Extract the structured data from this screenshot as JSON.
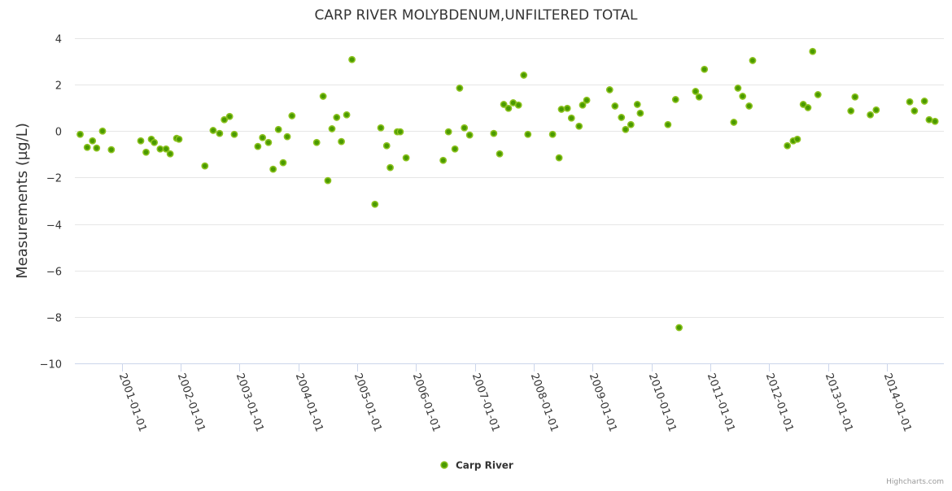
{
  "chart_data": {
    "type": "scatter",
    "title": "CARP RIVER MOLYBDENUM,UNFILTERED TOTAL",
    "xlabel": "",
    "ylabel": "Measurements (µg/L)",
    "x_units": "decimal year",
    "xlim": [
      2000.2,
      2014.97
    ],
    "ylim": [
      -10,
      4
    ],
    "yticks": [
      4,
      2,
      0,
      -2,
      -4,
      -6,
      -8,
      -10
    ],
    "ytick_labels": [
      "4",
      "2",
      "0",
      "−2",
      "−4",
      "−6",
      "−8",
      "−10"
    ],
    "xticks": [
      2001,
      2002,
      2003,
      2004,
      2005,
      2006,
      2007,
      2008,
      2009,
      2010,
      2011,
      2012,
      2013,
      2014
    ],
    "xtick_labels": [
      "2001-01-01",
      "2002-01-01",
      "2003-01-01",
      "2004-01-01",
      "2005-01-01",
      "2006-01-01",
      "2007-01-01",
      "2008-01-01",
      "2009-01-01",
      "2010-01-01",
      "2011-01-01",
      "2012-01-01",
      "2013-01-01",
      "2014-01-01"
    ],
    "grid": true,
    "legend_position": "bottom-center",
    "series": [
      {
        "name": "Carp River",
        "color": "#4a9a00",
        "edge_color": "#8cc21f",
        "points": [
          [
            2000.29,
            -0.14
          ],
          [
            2000.41,
            -0.7
          ],
          [
            2000.5,
            -0.42
          ],
          [
            2000.57,
            -0.73
          ],
          [
            2000.67,
            0.0
          ],
          [
            2000.82,
            -0.8
          ],
          [
            2001.32,
            -0.42
          ],
          [
            2001.41,
            -0.91
          ],
          [
            2001.5,
            -0.35
          ],
          [
            2001.55,
            -0.49
          ],
          [
            2001.65,
            -0.77
          ],
          [
            2001.75,
            -0.77
          ],
          [
            2001.82,
            -0.98
          ],
          [
            2001.93,
            -0.31
          ],
          [
            2001.97,
            -0.35
          ],
          [
            2002.41,
            -1.5
          ],
          [
            2002.55,
            0.03
          ],
          [
            2002.66,
            -0.1
          ],
          [
            2002.74,
            0.49
          ],
          [
            2002.83,
            0.63
          ],
          [
            2002.91,
            -0.14
          ],
          [
            2003.31,
            -0.66
          ],
          [
            2003.39,
            -0.28
          ],
          [
            2003.49,
            -0.49
          ],
          [
            2003.57,
            -1.64
          ],
          [
            2003.66,
            0.07
          ],
          [
            2003.74,
            -1.36
          ],
          [
            2003.81,
            -0.24
          ],
          [
            2003.89,
            0.66
          ],
          [
            2004.31,
            -0.49
          ],
          [
            2004.42,
            1.5
          ],
          [
            2004.5,
            -2.13
          ],
          [
            2004.57,
            0.1
          ],
          [
            2004.65,
            0.59
          ],
          [
            2004.73,
            -0.45
          ],
          [
            2004.82,
            0.7
          ],
          [
            2004.91,
            3.08
          ],
          [
            2005.3,
            -3.15
          ],
          [
            2005.4,
            0.14
          ],
          [
            2005.5,
            -0.63
          ],
          [
            2005.56,
            -1.57
          ],
          [
            2005.68,
            -0.03
          ],
          [
            2005.73,
            -0.03
          ],
          [
            2005.83,
            -1.15
          ],
          [
            2006.46,
            -1.26
          ],
          [
            2006.55,
            -0.03
          ],
          [
            2006.66,
            -0.77
          ],
          [
            2006.74,
            1.85
          ],
          [
            2006.82,
            0.14
          ],
          [
            2006.91,
            -0.17
          ],
          [
            2007.32,
            -0.1
          ],
          [
            2007.42,
            -0.98
          ],
          [
            2007.49,
            1.15
          ],
          [
            2007.57,
            0.98
          ],
          [
            2007.65,
            1.22
          ],
          [
            2007.74,
            1.12
          ],
          [
            2007.83,
            2.41
          ],
          [
            2007.9,
            -0.14
          ],
          [
            2008.32,
            -0.14
          ],
          [
            2008.43,
            -1.15
          ],
          [
            2008.47,
            0.94
          ],
          [
            2008.57,
            0.98
          ],
          [
            2008.64,
            0.56
          ],
          [
            2008.77,
            0.21
          ],
          [
            2008.83,
            1.12
          ],
          [
            2008.9,
            1.33
          ],
          [
            2009.29,
            1.78
          ],
          [
            2009.38,
            1.08
          ],
          [
            2009.49,
            0.59
          ],
          [
            2009.56,
            0.07
          ],
          [
            2009.65,
            0.28
          ],
          [
            2009.76,
            1.15
          ],
          [
            2009.81,
            0.77
          ],
          [
            2010.28,
            0.28
          ],
          [
            2010.41,
            1.36
          ],
          [
            2010.47,
            -8.46
          ],
          [
            2010.75,
            1.71
          ],
          [
            2010.81,
            1.47
          ],
          [
            2010.9,
            2.66
          ],
          [
            2011.4,
            0.38
          ],
          [
            2011.47,
            1.85
          ],
          [
            2011.55,
            1.5
          ],
          [
            2011.66,
            1.08
          ],
          [
            2011.72,
            3.04
          ],
          [
            2012.31,
            -0.63
          ],
          [
            2012.41,
            -0.42
          ],
          [
            2012.48,
            -0.35
          ],
          [
            2012.58,
            1.15
          ],
          [
            2012.66,
            1.01
          ],
          [
            2012.74,
            3.43
          ],
          [
            2012.83,
            1.57
          ],
          [
            2013.39,
            0.87
          ],
          [
            2013.46,
            1.47
          ],
          [
            2013.72,
            0.7
          ],
          [
            2013.82,
            0.91
          ],
          [
            2014.39,
            1.26
          ],
          [
            2014.47,
            0.87
          ],
          [
            2014.64,
            1.29
          ],
          [
            2014.72,
            0.49
          ],
          [
            2014.82,
            0.42
          ]
        ]
      }
    ]
  },
  "credits": "Highcharts.com"
}
